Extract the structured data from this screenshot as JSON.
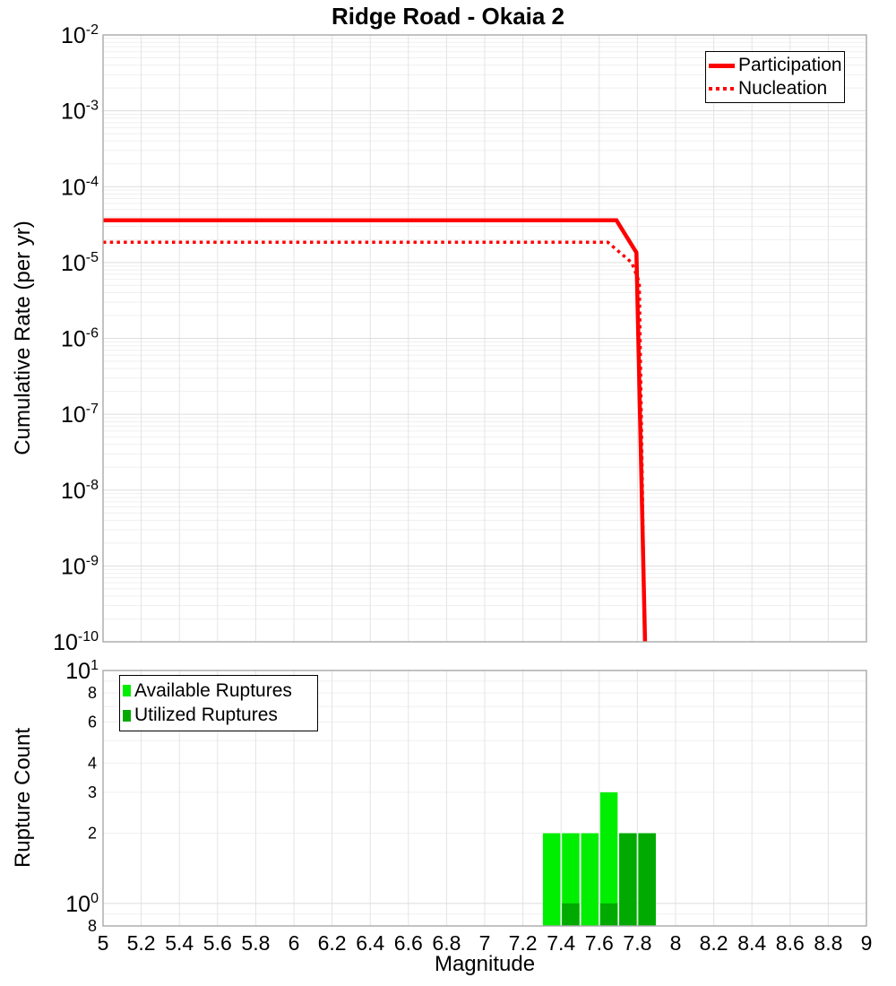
{
  "title": "Ridge Road - Okaia 2",
  "chart_data": [
    {
      "type": "line",
      "title": "Ridge Road - Okaia 2",
      "ylabel": "Cumulative Rate (per yr)",
      "xlabel": "Magnitude",
      "x_range": [
        5,
        9
      ],
      "y_scale": "log",
      "y_range": [
        1e-10,
        0.01
      ],
      "grid": true,
      "legend_position": "top-right",
      "series": [
        {
          "name": "Participation",
          "color": "#ff0000",
          "line_style": "solid",
          "points": [
            [
              5.0,
              3.6e-05
            ],
            [
              7.69,
              3.6e-05
            ],
            [
              7.795,
              1.35e-05
            ],
            [
              7.84,
              1e-10
            ]
          ]
        },
        {
          "name": "Nucleation",
          "color": "#ff0000",
          "line_style": "dotted",
          "points": [
            [
              5.0,
              1.85e-05
            ],
            [
              7.645,
              1.85e-05
            ],
            [
              7.77,
              1e-05
            ],
            [
              7.81,
              5.5e-06
            ],
            [
              7.838,
              1e-10
            ]
          ]
        }
      ],
      "y_ticks": [
        {
          "value": 0.01,
          "mantissa": "10",
          "exp": "-2"
        },
        {
          "value": 0.001,
          "mantissa": "10",
          "exp": "-3"
        },
        {
          "value": 0.0001,
          "mantissa": "10",
          "exp": "-4"
        },
        {
          "value": 1e-05,
          "mantissa": "10",
          "exp": "-5"
        },
        {
          "value": 1e-06,
          "mantissa": "10",
          "exp": "-6"
        },
        {
          "value": 1e-07,
          "mantissa": "10",
          "exp": "-7"
        },
        {
          "value": 1e-08,
          "mantissa": "10",
          "exp": "-8"
        },
        {
          "value": 1e-09,
          "mantissa": "10",
          "exp": "-9"
        },
        {
          "value": 1e-10,
          "mantissa": "10",
          "exp": "-10"
        }
      ]
    },
    {
      "type": "bar",
      "ylabel": "Rupture Count",
      "xlabel": "Magnitude",
      "x_range": [
        5,
        9
      ],
      "y_scale": "log",
      "y_range": [
        0.8,
        10
      ],
      "bin_width": 0.1,
      "grid": true,
      "legend_position": "top-left",
      "series": [
        {
          "name": "Available Ruptures",
          "color": "#00ee00",
          "bin_centers": [
            7.35,
            7.45,
            7.55,
            7.65,
            7.75,
            7.85
          ],
          "counts": [
            2,
            2,
            2,
            3,
            2,
            2
          ]
        },
        {
          "name": "Utilized Ruptures",
          "color": "#00aa00",
          "bin_centers": [
            7.45,
            7.65,
            7.75,
            7.85
          ],
          "counts": [
            1,
            1,
            2,
            2
          ]
        }
      ],
      "y_ticks": [
        {
          "value": 10,
          "mantissa": "10",
          "exp": "1"
        },
        {
          "value": 8,
          "label": "8"
        },
        {
          "value": 6,
          "label": "6"
        },
        {
          "value": 4,
          "label": "4"
        },
        {
          "value": 3,
          "label": "3"
        },
        {
          "value": 2,
          "label": "2"
        },
        {
          "value": 1,
          "mantissa": "10",
          "exp": "0"
        },
        {
          "value": 0.8,
          "label": "8"
        }
      ],
      "x_ticks": [
        {
          "value": 5,
          "label": "5"
        },
        {
          "value": 5.2,
          "label": "5.2"
        },
        {
          "value": 5.4,
          "label": "5.4"
        },
        {
          "value": 5.6,
          "label": "5.6"
        },
        {
          "value": 5.8,
          "label": "5.8"
        },
        {
          "value": 6,
          "label": "6"
        },
        {
          "value": 6.2,
          "label": "6.2"
        },
        {
          "value": 6.4,
          "label": "6.4"
        },
        {
          "value": 6.6,
          "label": "6.6"
        },
        {
          "value": 6.8,
          "label": "6.8"
        },
        {
          "value": 7,
          "label": "7"
        },
        {
          "value": 7.2,
          "label": "7.2"
        },
        {
          "value": 7.4,
          "label": "7.4"
        },
        {
          "value": 7.6,
          "label": "7.6"
        },
        {
          "value": 7.8,
          "label": "7.8"
        },
        {
          "value": 8,
          "label": "8"
        },
        {
          "value": 8.2,
          "label": "8.2"
        },
        {
          "value": 8.4,
          "label": "8.4"
        },
        {
          "value": 8.6,
          "label": "8.6"
        },
        {
          "value": 8.8,
          "label": "8.8"
        },
        {
          "value": 9,
          "label": "9"
        }
      ]
    }
  ]
}
